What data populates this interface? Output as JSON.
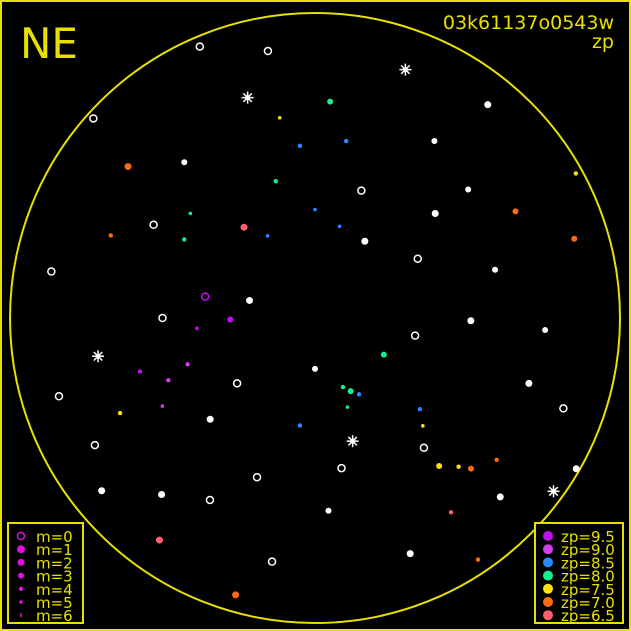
{
  "header": {
    "direction_label": "NE",
    "image_id": "03k61137o0543w",
    "color_key_label": "zp"
  },
  "colors": {
    "frame": "#e8e000",
    "unmatched_star": "#ffffff"
  },
  "chart_data": {
    "type": "scatter",
    "projection": "polar all-sky, zenith at center, horizon at circle edge",
    "axes": {
      "altitude_range_deg": [
        0,
        90
      ],
      "azimuth_range_deg": [
        0,
        360
      ]
    },
    "grid": false,
    "legends": {
      "magnitude": {
        "placement": "bottom-left",
        "entries": [
          {
            "label": "m=0",
            "m": 0,
            "style": "open"
          },
          {
            "label": "m=1",
            "m": 1
          },
          {
            "label": "m=2",
            "m": 2
          },
          {
            "label": "m=3",
            "m": 3
          },
          {
            "label": "m=4",
            "m": 4
          },
          {
            "label": "m=5",
            "m": 5
          },
          {
            "label": "m=6",
            "m": 6
          }
        ]
      },
      "zp": {
        "placement": "bottom-right",
        "entries": [
          {
            "label": "zp=9.5",
            "zp": 9.5,
            "color": "#c010f0"
          },
          {
            "label": "zp=9.0",
            "zp": 9.0,
            "color": "#d040e8"
          },
          {
            "label": "zp=8.5",
            "zp": 8.5,
            "color": "#2888ff"
          },
          {
            "label": "zp=8.0",
            "zp": 8.0,
            "color": "#10f090"
          },
          {
            "label": "zp=7.5",
            "zp": 7.5,
            "color": "#ffe010"
          },
          {
            "label": "zp=7.0",
            "zp": 7.0,
            "color": "#ff6a10"
          },
          {
            "label": "zp=6.5",
            "zp": 6.5,
            "color": "#ff6070"
          }
        ]
      }
    },
    "stars": [
      {
        "az": 343,
        "alt": 22,
        "m": 1,
        "zp": null,
        "burst": true
      },
      {
        "az": 20,
        "alt": 12,
        "m": 1,
        "zp": null,
        "burst": true
      },
      {
        "az": 260,
        "alt": 25,
        "m": 1,
        "zp": null,
        "burst": true
      },
      {
        "az": 163,
        "alt": 52,
        "m": 1,
        "zp": null,
        "burst": true
      },
      {
        "az": 126,
        "alt": 3,
        "m": 1,
        "zp": null,
        "burst": true
      },
      {
        "az": 33,
        "alt": 63,
        "m": 2,
        "zp": null
      },
      {
        "az": 322,
        "alt": 56,
        "m": 2,
        "zp": 6.5
      },
      {
        "az": 309,
        "alt": 19,
        "m": 2,
        "zp": 7.0
      },
      {
        "az": 4,
        "alt": 26,
        "m": 3,
        "zp": 8.0
      },
      {
        "az": 281,
        "alt": 57,
        "m": 0,
        "zp": 9.5
      },
      {
        "az": 154,
        "alt": 66,
        "m": 3,
        "zp": 8.0
      },
      {
        "az": 150,
        "alt": 64,
        "m": 4,
        "zp": 8.5
      },
      {
        "az": 158,
        "alt": 68,
        "m": 4,
        "zp": 8.0
      },
      {
        "az": 188,
        "alt": 58,
        "m": 4,
        "zp": 8.5
      },
      {
        "az": 134,
        "alt": 26,
        "m": 3,
        "zp": 7.0
      },
      {
        "az": 140,
        "alt": 33,
        "m": 3,
        "zp": 7.5
      },
      {
        "az": 136,
        "alt": 29,
        "m": 4,
        "zp": 7.5
      },
      {
        "az": 39,
        "alt": 9,
        "m": 2,
        "zp": null
      },
      {
        "az": 49,
        "alt": 43,
        "m": 2,
        "zp": null
      },
      {
        "az": 50,
        "alt": 31,
        "m": 3,
        "zp": null
      },
      {
        "az": 107,
        "alt": 24,
        "m": 2,
        "zp": null
      },
      {
        "az": 215,
        "alt": 10,
        "m": 2,
        "zp": 6.5
      },
      {
        "az": 196,
        "alt": 5,
        "m": 2,
        "zp": 7.0
      },
      {
        "az": 73,
        "alt": 10,
        "m": 3,
        "zp": 7.0
      },
      {
        "az": 118,
        "alt": 67,
        "m": 3,
        "zp": 8.0
      },
      {
        "az": 131,
        "alt": 49,
        "m": 4,
        "zp": 8.5
      },
      {
        "az": 355,
        "alt": 39,
        "m": 4,
        "zp": 8.5
      },
      {
        "az": 10,
        "alt": 37,
        "m": 4,
        "zp": 8.5
      },
      {
        "az": 344,
        "alt": 48,
        "m": 4,
        "zp": 8.0
      },
      {
        "az": 301,
        "alt": 45,
        "m": 4,
        "zp": 8.0
      },
      {
        "az": 253,
        "alt": 36,
        "m": 4,
        "zp": 9.5
      },
      {
        "az": 247,
        "alt": 43,
        "m": 4,
        "zp": 9.0
      },
      {
        "az": 269,
        "alt": 65,
        "m": 3,
        "zp": 9.5
      },
      {
        "az": 292,
        "alt": 25,
        "m": 4,
        "zp": 7.0
      },
      {
        "az": 91,
        "alt": 44,
        "m": 2,
        "zp": null
      },
      {
        "az": 93,
        "alt": 22,
        "m": 3,
        "zp": null
      },
      {
        "az": 231,
        "alt": 9,
        "m": 2,
        "zp": null
      },
      {
        "az": 221,
        "alt": 21,
        "m": 2,
        "zp": null
      },
      {
        "az": 134,
        "alt": 14,
        "m": 2,
        "zp": null
      },
      {
        "az": 226,
        "alt": 47,
        "m": 2,
        "zp": null
      },
      {
        "az": 34,
        "alt": 27,
        "m": 3,
        "zp": null
      },
      {
        "az": 253,
        "alt": 11,
        "m": 0,
        "zp": null
      },
      {
        "az": 337,
        "alt": 3,
        "m": 0,
        "zp": null
      },
      {
        "az": 280,
        "alt": 11,
        "m": 0,
        "zp": null
      },
      {
        "az": 62,
        "alt": 23,
        "m": 3,
        "zp": 7.0
      },
      {
        "az": 244,
        "alt": 26,
        "m": 4,
        "zp": 7.5
      },
      {
        "az": 120,
        "alt": 1,
        "m": 2,
        "zp": null
      },
      {
        "az": 176,
        "alt": 33,
        "m": 3,
        "zp": null
      },
      {
        "az": 190,
        "alt": 17,
        "m": 0,
        "zp": null
      },
      {
        "az": 158,
        "alt": 15,
        "m": 2,
        "zp": null
      },
      {
        "az": 312,
        "alt": 2,
        "m": 0,
        "zp": null
      },
      {
        "az": 61,
        "alt": 2,
        "m": 4,
        "zp": 7.5
      },
      {
        "az": 146,
        "alt": 4,
        "m": 4,
        "zp": 7.0
      },
      {
        "az": 200,
        "alt": 40,
        "m": 0,
        "zp": null
      },
      {
        "az": 170,
        "alt": 45,
        "m": 0,
        "zp": null
      },
      {
        "az": 100,
        "alt": 60,
        "m": 0,
        "zp": null
      },
      {
        "az": 300,
        "alt": 35,
        "m": 0,
        "zp": null
      },
      {
        "az": 270,
        "alt": 45,
        "m": 0,
        "zp": null
      },
      {
        "az": 230,
        "alt": 60,
        "m": 0,
        "zp": null
      },
      {
        "az": 20,
        "alt": 50,
        "m": 0,
        "zp": null
      },
      {
        "az": 60,
        "alt": 55,
        "m": 0,
        "zp": null
      },
      {
        "az": 140,
        "alt": 40,
        "m": 0,
        "zp": null
      },
      {
        "az": 210,
        "alt": 28,
        "m": 0,
        "zp": null
      },
      {
        "az": 320,
        "alt": 30,
        "m": 3,
        "zp": null
      },
      {
        "az": 285,
        "alt": 70,
        "m": 2,
        "zp": null
      },
      {
        "az": 180,
        "alt": 75,
        "m": 3,
        "zp": null
      },
      {
        "az": 75,
        "alt": 35,
        "m": 3,
        "zp": null
      },
      {
        "az": 110,
        "alt": 12,
        "m": 0,
        "zp": null
      },
      {
        "az": 240,
        "alt": 15,
        "m": 0,
        "zp": null
      },
      {
        "az": 350,
        "alt": 10,
        "m": 0,
        "zp": null
      },
      {
        "az": 250,
        "alt": 50,
        "m": 4,
        "zp": 9.0
      },
      {
        "az": 265,
        "alt": 55,
        "m": 5,
        "zp": 9.5
      },
      {
        "az": 240,
        "alt": 38,
        "m": 5,
        "zp": 9.0
      },
      {
        "az": 330,
        "alt": 62,
        "m": 5,
        "zp": 8.5
      },
      {
        "az": 0,
        "alt": 58,
        "m": 5,
        "zp": 8.5
      },
      {
        "az": 15,
        "alt": 62,
        "m": 5,
        "zp": 8.5
      },
      {
        "az": 145,
        "alt": 20,
        "m": 4,
        "zp": 6.5
      },
      {
        "az": 128,
        "alt": 22,
        "m": 4,
        "zp": 7.0
      },
      {
        "az": 160,
        "alt": 62,
        "m": 5,
        "zp": 8.0
      },
      {
        "az": 135,
        "alt": 45,
        "m": 5,
        "zp": 7.5
      },
      {
        "az": 350,
        "alt": 30,
        "m": 5,
        "zp": 7.5
      },
      {
        "az": 310,
        "alt": 42,
        "m": 5,
        "zp": 8.0
      }
    ]
  }
}
